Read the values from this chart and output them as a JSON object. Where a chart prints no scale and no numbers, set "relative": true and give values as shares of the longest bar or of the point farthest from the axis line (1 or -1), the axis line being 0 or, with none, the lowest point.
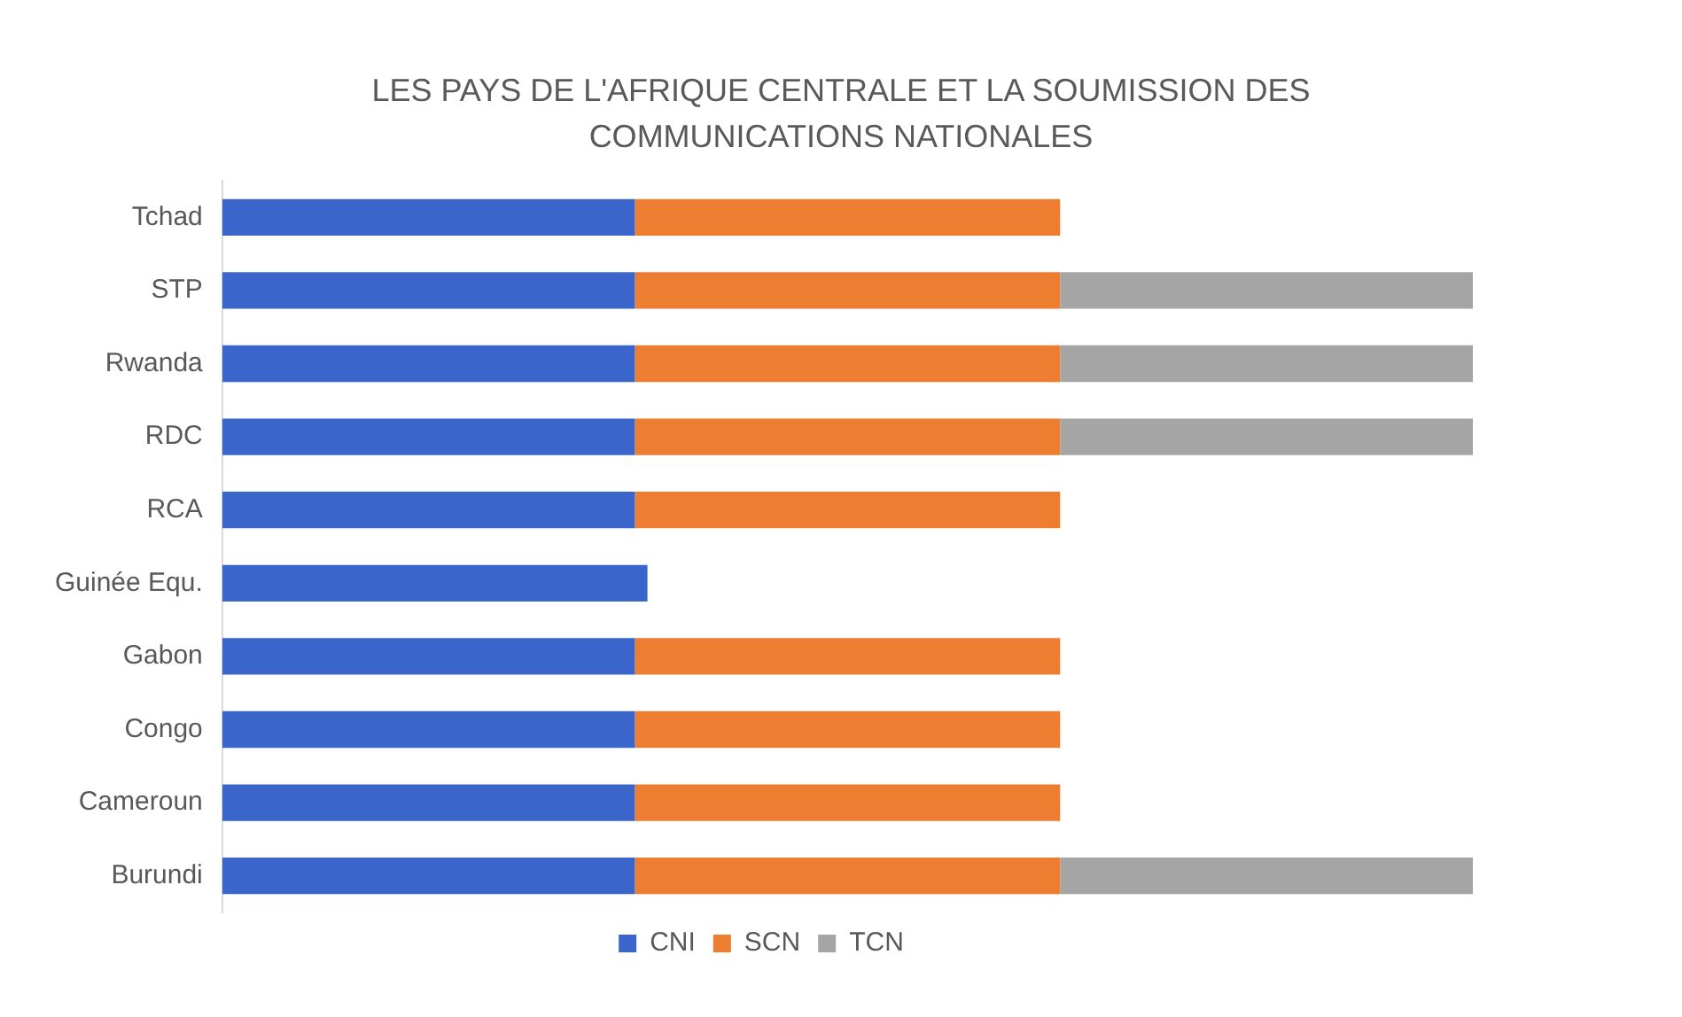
{
  "chart_data": {
    "type": "bar",
    "orientation": "horizontal",
    "stacked": true,
    "relative": true,
    "title": "LES PAYS DE L'AFRIQUE CENTRALE ET LA SOUMISSION DES COMMUNICATIONS NATIONALES",
    "categories": [
      "Tchad",
      "STP",
      "Rwanda",
      "RDC",
      "RCA",
      "Guinée Equ.",
      "Gabon",
      "Congo",
      "Cameroun",
      "Burundi"
    ],
    "series": [
      {
        "name": "CNI",
        "color": "#3a66cc",
        "values": [
          0.33,
          0.33,
          0.33,
          0.33,
          0.33,
          0.34,
          0.33,
          0.33,
          0.33,
          0.33
        ]
      },
      {
        "name": "SCN",
        "color": "#ed7d31",
        "values": [
          0.34,
          0.34,
          0.34,
          0.34,
          0.34,
          null,
          0.34,
          0.34,
          0.34,
          0.34
        ]
      },
      {
        "name": "TCN",
        "color": "#a5a5a5",
        "values": [
          null,
          0.33,
          0.33,
          0.33,
          null,
          null,
          null,
          null,
          null,
          0.33
        ]
      }
    ],
    "legend": "bottom"
  }
}
